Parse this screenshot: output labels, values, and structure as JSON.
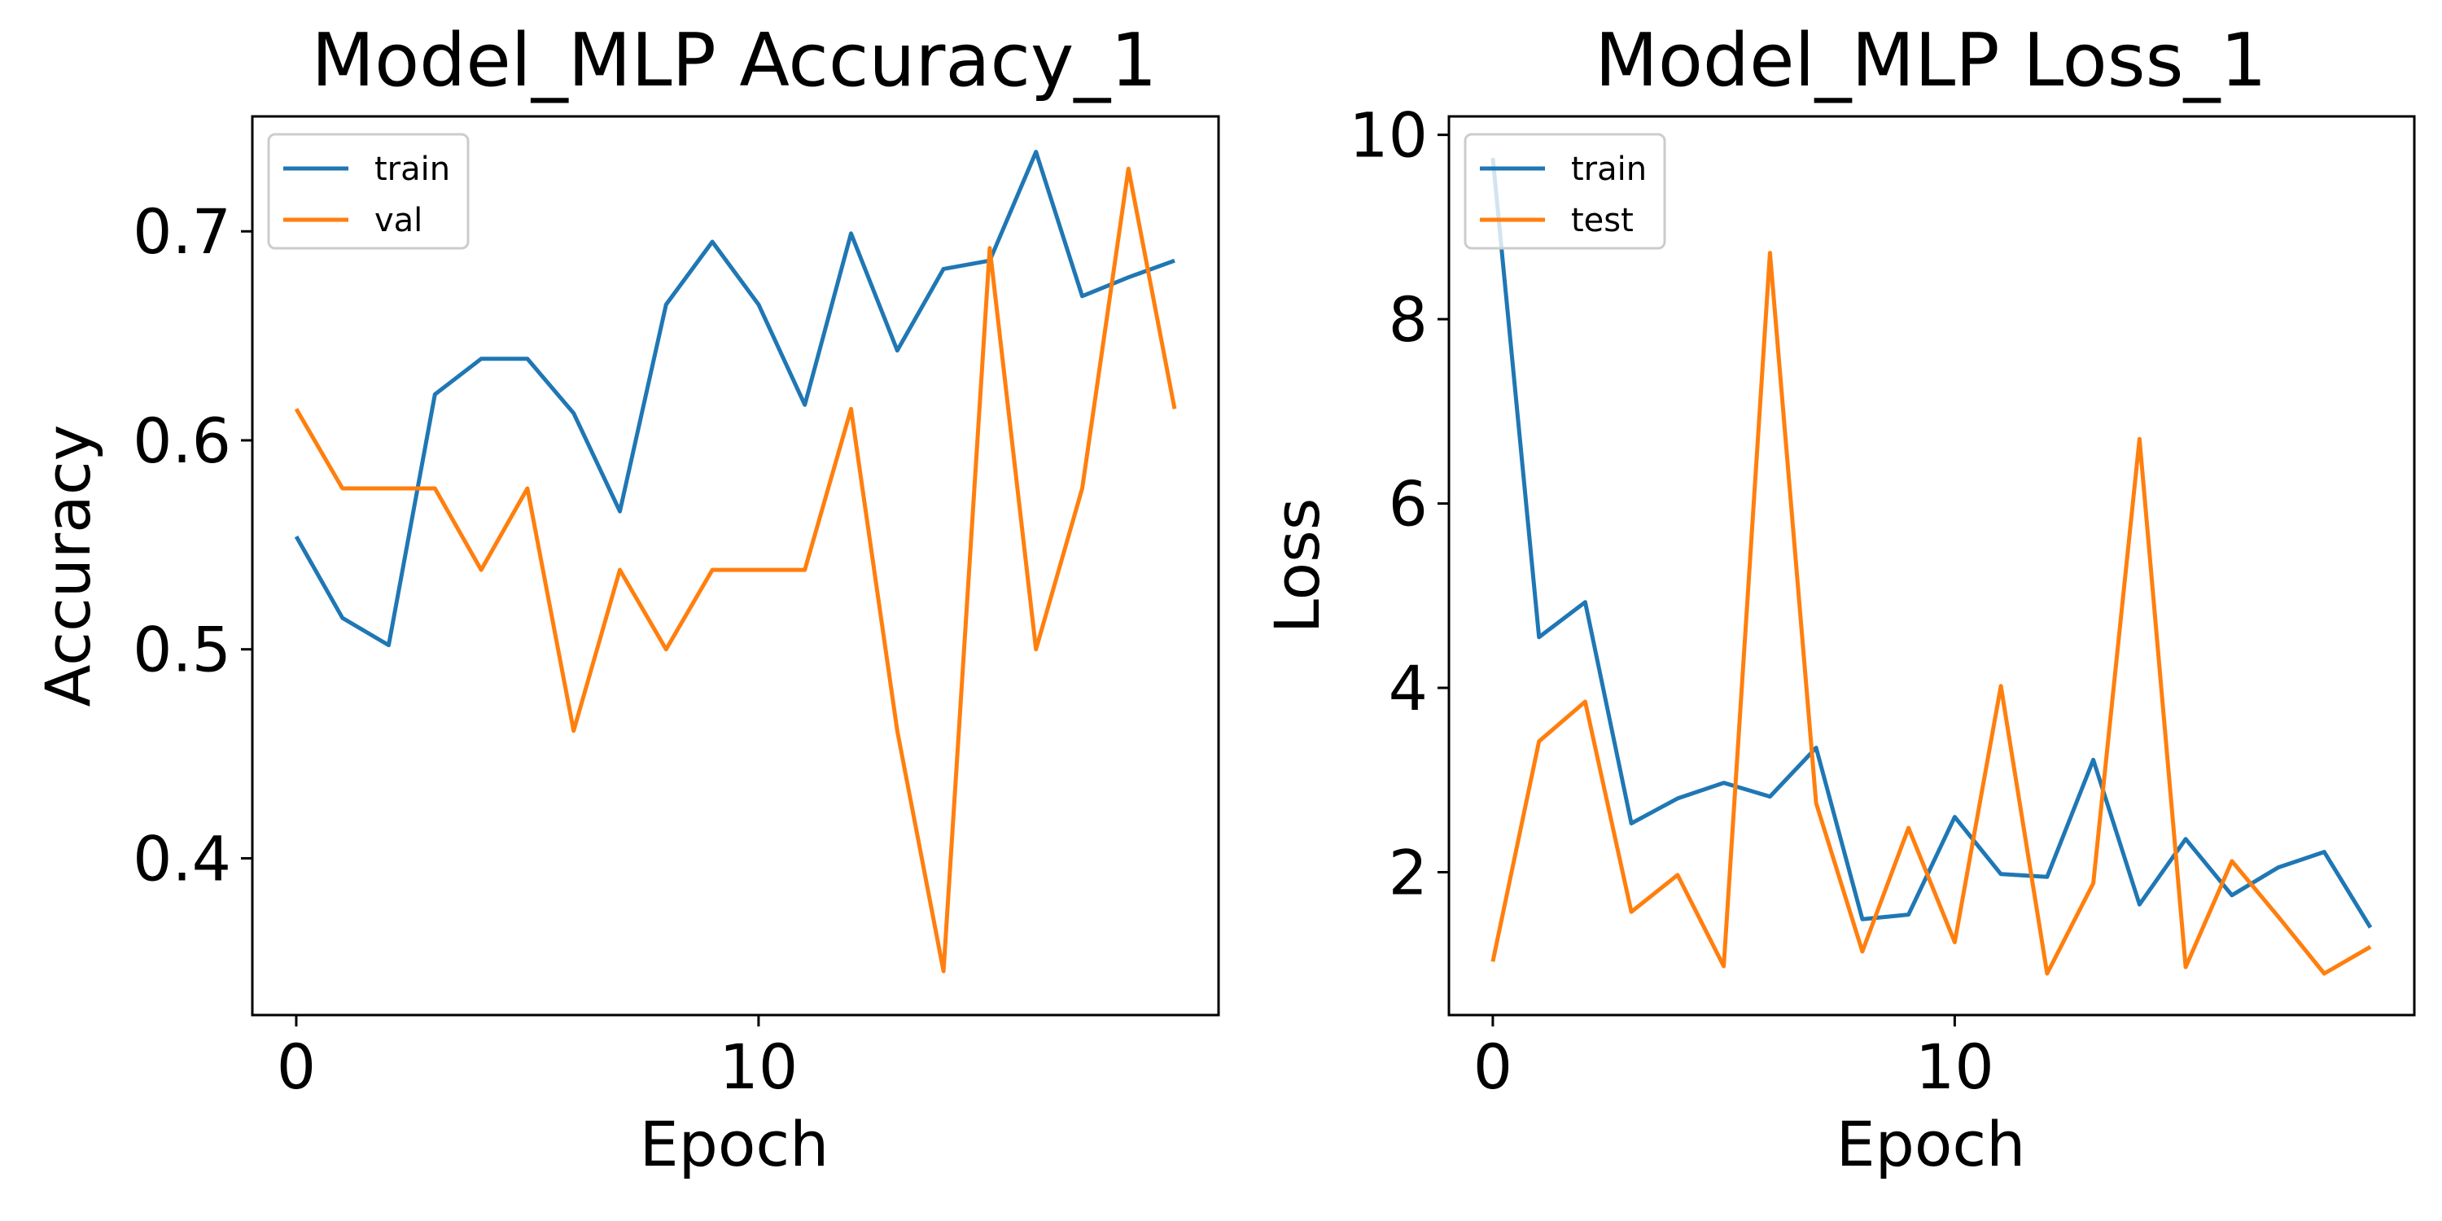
{
  "chart_data": [
    {
      "type": "line",
      "title": "Model_MLP Accuracy_1",
      "xlabel": "Epoch",
      "ylabel": "Accuracy",
      "xlim": [
        -0.95,
        19.95
      ],
      "ylim": [
        0.325,
        0.755
      ],
      "xticks": [
        0,
        10
      ],
      "yticks": [
        0.4,
        0.5,
        0.6,
        0.7
      ],
      "ytick_labels": [
        "0.4",
        "0.5",
        "0.6",
        "0.7"
      ],
      "grid": false,
      "legend_position": "upper-left",
      "x": [
        0,
        1,
        2,
        3,
        4,
        5,
        6,
        7,
        8,
        9,
        10,
        11,
        12,
        13,
        14,
        15,
        16,
        17,
        18,
        19
      ],
      "series": [
        {
          "name": "train",
          "color": "#1f77b4",
          "values": [
            0.554,
            0.515,
            0.502,
            0.622,
            0.639,
            0.639,
            0.613,
            0.566,
            0.665,
            0.695,
            0.665,
            0.617,
            0.699,
            0.643,
            0.682,
            0.686,
            0.738,
            0.669,
            0.678,
            0.686
          ]
        },
        {
          "name": "val",
          "color": "#ff7f0e",
          "values": [
            0.615,
            0.577,
            0.577,
            0.577,
            0.538,
            0.577,
            0.461,
            0.538,
            0.5,
            0.538,
            0.538,
            0.538,
            0.615,
            0.461,
            0.346,
            0.692,
            0.5,
            0.577,
            0.73,
            0.615
          ]
        }
      ]
    },
    {
      "type": "line",
      "title": "Model_MLP Loss_1",
      "xlabel": "Epoch",
      "ylabel": "Loss",
      "xlim": [
        -0.95,
        19.95
      ],
      "ylim": [
        0.45,
        10.2
      ],
      "xticks": [
        0,
        10
      ],
      "yticks": [
        2,
        4,
        6,
        8,
        10
      ],
      "ytick_labels": [
        "2",
        "4",
        "6",
        "8",
        "10"
      ],
      "grid": false,
      "legend_position": "upper-left",
      "x": [
        0,
        1,
        2,
        3,
        4,
        5,
        6,
        7,
        8,
        9,
        10,
        11,
        12,
        13,
        14,
        15,
        16,
        17,
        18,
        19
      ],
      "series": [
        {
          "name": "train",
          "color": "#1f77b4",
          "values": [
            9.75,
            4.55,
            4.93,
            2.53,
            2.8,
            2.97,
            2.82,
            3.35,
            1.49,
            1.54,
            2.6,
            1.98,
            1.95,
            3.22,
            1.65,
            2.36,
            1.75,
            2.05,
            2.22,
            1.4
          ]
        },
        {
          "name": "test",
          "color": "#ff7f0e",
          "values": [
            1.03,
            3.42,
            3.85,
            1.57,
            1.97,
            0.98,
            8.72,
            2.75,
            1.14,
            2.48,
            1.24,
            4.02,
            0.9,
            1.88,
            6.7,
            0.97,
            2.12,
            1.52,
            0.9,
            1.19
          ]
        }
      ]
    }
  ]
}
